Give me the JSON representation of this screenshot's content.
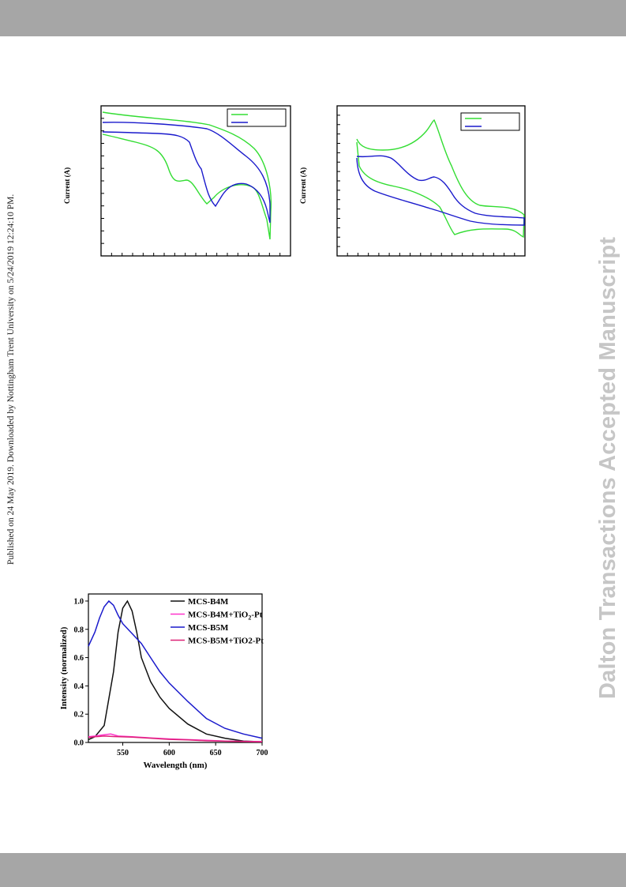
{
  "header_band": "",
  "footer_band": "",
  "margin_note": "Published on 24 May 2019. Downloaded by Nottingham Trent University on 5/24/2019 12:24:10 PM.",
  "watermark": "Dalton Transactions Accepted Manuscript",
  "colors": {
    "green": "#33dd33",
    "blue": "#1a1acc",
    "black": "#111111",
    "magenta": "#ff33cc",
    "pink": "#dd2277",
    "band": "#a6a6a6"
  },
  "figures": {
    "cv_left": {
      "ylabel": "Current (A)",
      "legend": [
        "",
        ""
      ],
      "series": [
        {
          "name": "",
          "color": "#33dd33"
        },
        {
          "name": "",
          "color": "#1a1acc"
        }
      ]
    },
    "cv_right": {
      "ylabel": "Current (A)",
      "legend": [
        "",
        ""
      ],
      "series": [
        {
          "name": "",
          "color": "#33dd33"
        },
        {
          "name": "",
          "color": "#1a1acc"
        }
      ]
    }
  },
  "chart_data": {
    "type": "line",
    "title": "",
    "xlabel": "Wavelength (nm)",
    "ylabel": "Intensity (normalized)",
    "xlim": [
      513,
      700
    ],
    "ylim": [
      0,
      1.05
    ],
    "xticks": [
      550,
      600,
      650,
      700
    ],
    "yticks": [
      "0.0",
      "0.2",
      "0.4",
      "0.6",
      "0.8",
      "1.0"
    ],
    "legend": {
      "placement": "top-right"
    },
    "series": [
      {
        "name": "MCS-B4M",
        "color": "#111111",
        "x": [
          513,
          520,
          530,
          540,
          545,
          550,
          555,
          560,
          565,
          570,
          580,
          590,
          600,
          620,
          640,
          660,
          680,
          700
        ],
        "y": [
          0.02,
          0.04,
          0.12,
          0.5,
          0.78,
          0.95,
          1.0,
          0.93,
          0.78,
          0.6,
          0.43,
          0.32,
          0.24,
          0.13,
          0.06,
          0.03,
          0.01,
          0.005
        ]
      },
      {
        "name": "MCS-B4M+TiO2-Pt",
        "name_parts": [
          "MCS-B4M+TiO",
          "2",
          "-Pt"
        ],
        "color": "#ff33cc",
        "x": [
          513,
          520,
          530,
          537,
          545,
          560,
          580,
          600,
          620,
          640,
          660,
          680,
          700
        ],
        "y": [
          0.04,
          0.045,
          0.055,
          0.06,
          0.045,
          0.04,
          0.032,
          0.025,
          0.02,
          0.015,
          0.01,
          0.008,
          0.006
        ]
      },
      {
        "name": "MCS-B5M",
        "color": "#1a1acc",
        "x": [
          513,
          520,
          525,
          530,
          535,
          540,
          545,
          550,
          560,
          570,
          580,
          590,
          600,
          620,
          640,
          660,
          680,
          700
        ],
        "y": [
          0.68,
          0.78,
          0.88,
          0.96,
          1.0,
          0.97,
          0.9,
          0.84,
          0.77,
          0.7,
          0.6,
          0.5,
          0.42,
          0.29,
          0.17,
          0.1,
          0.06,
          0.03
        ]
      },
      {
        "name": "MCS-B5M+TiO2-Pt",
        "color": "#dd2277",
        "x": [
          513,
          520,
          530,
          540,
          560,
          580,
          600,
          620,
          640,
          660,
          680,
          700
        ],
        "y": [
          0.035,
          0.04,
          0.045,
          0.042,
          0.038,
          0.03,
          0.022,
          0.018,
          0.012,
          0.009,
          0.006,
          0.004
        ]
      }
    ]
  }
}
